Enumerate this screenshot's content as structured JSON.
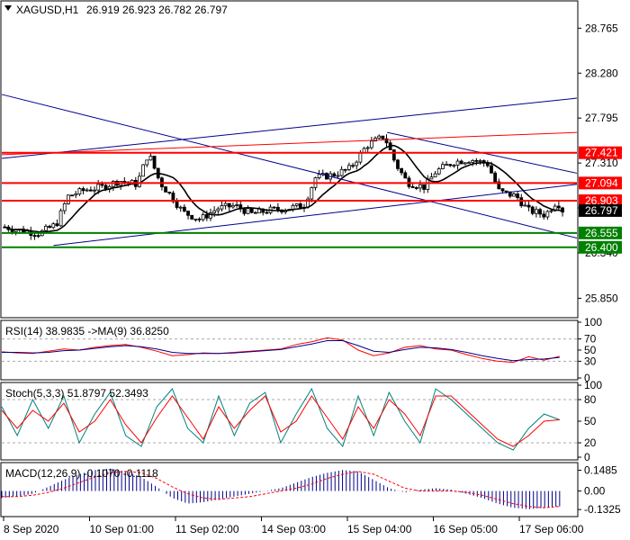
{
  "chart_data": [
    {
      "type": "candlestick",
      "panel": "main",
      "symbol_label": "XAGUSD,H1",
      "ohlc_label": "26.919 26.923 26.782 26.797",
      "ohlc": {
        "open": 26.919,
        "high": 26.923,
        "low": 26.782,
        "close": 26.797
      },
      "ylim": [
        25.65,
        29.05
      ],
      "y_ticks": [
        "28.765",
        "28.280",
        "27.795",
        "27.310",
        "26.825",
        "26.340",
        "25.850"
      ],
      "last_price_label": "26.797",
      "x_ticks": [
        "8 Sep 2020",
        "10 Sep 01:00",
        "11 Sep 02:00",
        "14 Sep 03:00",
        "15 Sep 04:00",
        "16 Sep 05:00",
        "17 Sep 06:00"
      ],
      "levels": [
        {
          "label": "27.421",
          "value": 27.421,
          "color": "#ff0000"
        },
        {
          "label": "27.094",
          "value": 27.094,
          "color": "#ff0000"
        },
        {
          "label": "26.903",
          "value": 26.903,
          "color": "#ff0000"
        },
        {
          "label": "26.555",
          "value": 26.555,
          "color": "#008000"
        },
        {
          "label": "26.400",
          "value": 26.4,
          "color": "#008000"
        }
      ],
      "trendlines": [
        {
          "color": "#00008b",
          "from": [
            0.0,
            28.05
          ],
          "to": [
            1.0,
            26.5
          ]
        },
        {
          "color": "#00008b",
          "from": [
            0.0,
            27.36
          ],
          "to": [
            1.0,
            28.01
          ]
        },
        {
          "color": "#00008b",
          "from": [
            0.09,
            26.42
          ],
          "to": [
            1.0,
            27.08
          ]
        },
        {
          "color": "#00008b",
          "from": [
            0.67,
            27.64
          ],
          "to": [
            1.0,
            27.2
          ]
        },
        {
          "color": "#ff0000",
          "from": [
            0.0,
            27.4
          ],
          "to": [
            1.0,
            27.64
          ]
        }
      ],
      "price_path": [
        [
          0.0,
          26.62
        ],
        [
          0.03,
          26.58
        ],
        [
          0.06,
          26.55
        ],
        [
          0.09,
          26.65
        ],
        [
          0.11,
          26.95
        ],
        [
          0.14,
          27.02
        ],
        [
          0.17,
          27.05
        ],
        [
          0.2,
          27.12
        ],
        [
          0.23,
          27.08
        ],
        [
          0.25,
          27.42
        ],
        [
          0.27,
          27.1
        ],
        [
          0.29,
          26.95
        ],
        [
          0.31,
          26.78
        ],
        [
          0.34,
          26.7
        ],
        [
          0.37,
          26.82
        ],
        [
          0.4,
          26.85
        ],
        [
          0.43,
          26.76
        ],
        [
          0.46,
          26.8
        ],
        [
          0.49,
          26.82
        ],
        [
          0.52,
          26.85
        ],
        [
          0.54,
          27.15
        ],
        [
          0.57,
          27.18
        ],
        [
          0.6,
          27.25
        ],
        [
          0.63,
          27.5
        ],
        [
          0.66,
          27.6
        ],
        [
          0.68,
          27.3
        ],
        [
          0.7,
          27.1
        ],
        [
          0.73,
          27.05
        ],
        [
          0.75,
          27.22
        ],
        [
          0.78,
          27.32
        ],
        [
          0.81,
          27.35
        ],
        [
          0.84,
          27.3
        ],
        [
          0.86,
          27.0
        ],
        [
          0.89,
          26.95
        ],
        [
          0.91,
          26.8
        ],
        [
          0.94,
          26.75
        ],
        [
          0.96,
          26.9
        ],
        [
          0.97,
          26.8
        ]
      ]
    },
    {
      "type": "line",
      "panel": "rsi",
      "label": "RSI(14) 38.9835 ->MA(9) 36.8250",
      "ylim": [
        0,
        100
      ],
      "y_ticks": [
        "100",
        "70",
        "50",
        "30",
        "0"
      ],
      "dashed_levels": [
        70,
        30
      ],
      "series": [
        {
          "color": "#ff0000",
          "values": [
            47,
            45,
            44,
            48,
            52,
            50,
            55,
            58,
            60,
            55,
            48,
            40,
            42,
            45,
            44,
            46,
            48,
            50,
            52,
            60,
            65,
            72,
            68,
            50,
            40,
            45,
            55,
            58,
            52,
            50,
            42,
            35,
            30,
            28,
            38,
            32,
            39
          ]
        },
        {
          "color": "#00008b",
          "values": [
            46,
            46,
            45,
            46,
            49,
            50,
            53,
            56,
            58,
            56,
            52,
            46,
            44,
            44,
            44,
            45,
            47,
            49,
            51,
            56,
            61,
            67,
            67,
            58,
            48,
            46,
            51,
            55,
            54,
            51,
            46,
            40,
            35,
            31,
            33,
            34,
            37
          ]
        }
      ]
    },
    {
      "type": "line",
      "panel": "stoch",
      "label": "Stoch(5,3,3) 51.8797 52.3493",
      "ylim": [
        0,
        100
      ],
      "y_ticks": [
        "100",
        "80",
        "50",
        "20",
        "0"
      ],
      "dashed_levels": [
        80,
        20
      ],
      "series": [
        {
          "color": "#008080",
          "values": [
            70,
            30,
            80,
            40,
            85,
            20,
            60,
            90,
            30,
            15,
            70,
            95,
            40,
            20,
            85,
            30,
            75,
            90,
            20,
            60,
            95,
            40,
            15,
            85,
            30,
            90,
            50,
            20,
            95,
            80,
            60,
            40,
            20,
            10,
            40,
            60,
            52
          ]
        },
        {
          "color": "#ff0000",
          "values": [
            65,
            40,
            65,
            50,
            75,
            35,
            50,
            80,
            45,
            20,
            55,
            85,
            55,
            25,
            70,
            40,
            65,
            85,
            35,
            50,
            85,
            55,
            25,
            70,
            40,
            80,
            60,
            30,
            85,
            85,
            65,
            45,
            25,
            15,
            30,
            50,
            52
          ]
        }
      ]
    },
    {
      "type": "histogram",
      "panel": "macd",
      "label": "MACD(12,26,9) -0.1070 -0.1118",
      "ylim": [
        -0.17,
        0.19
      ],
      "y_ticks": [
        "0.1485",
        "0.00",
        "-0.1325"
      ],
      "histogram_color": "#00008b",
      "signal_color": "#ff0000",
      "histogram": [
        -0.05,
        -0.04,
        -0.02,
        0.03,
        0.08,
        0.12,
        0.15,
        0.16,
        0.14,
        0.1,
        0.03,
        -0.05,
        -0.09,
        -0.08,
        -0.06,
        -0.04,
        -0.02,
        0.0,
        0.02,
        0.06,
        0.1,
        0.13,
        0.15,
        0.14,
        0.08,
        0.02,
        -0.01,
        0.01,
        0.02,
        0.01,
        -0.02,
        -0.05,
        -0.09,
        -0.12,
        -0.13,
        -0.12,
        -0.11
      ],
      "signal": [
        -0.04,
        -0.04,
        -0.03,
        -0.01,
        0.02,
        0.06,
        0.1,
        0.13,
        0.14,
        0.13,
        0.09,
        0.03,
        -0.02,
        -0.05,
        -0.06,
        -0.05,
        -0.04,
        -0.02,
        0.0,
        0.02,
        0.05,
        0.09,
        0.12,
        0.14,
        0.12,
        0.07,
        0.02,
        0.0,
        0.0,
        0.0,
        -0.01,
        -0.03,
        -0.06,
        -0.09,
        -0.11,
        -0.12,
        -0.11
      ]
    }
  ]
}
